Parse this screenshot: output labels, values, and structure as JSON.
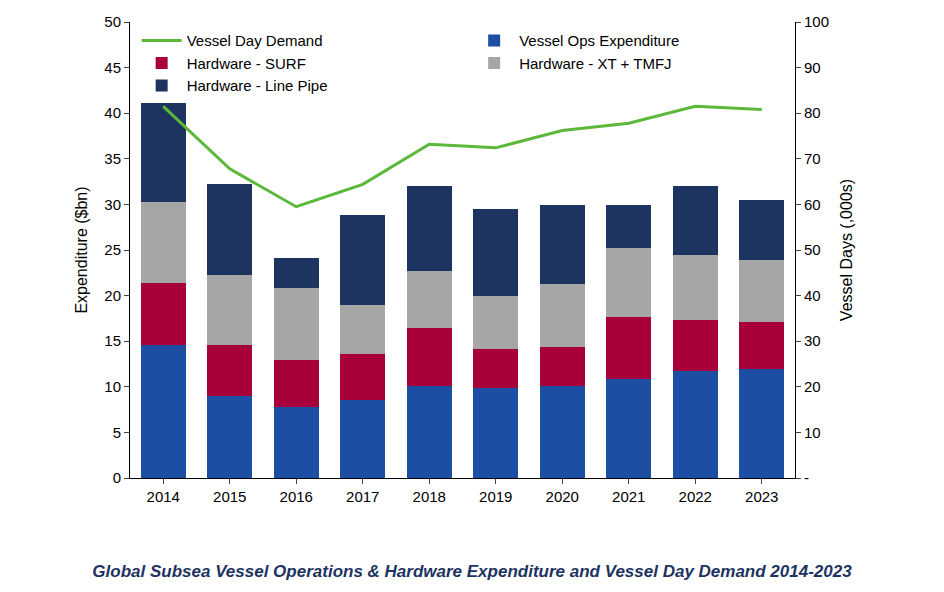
{
  "chart_data": {
    "type": "bar",
    "title": "Global Subsea Vessel Operations & Hardware Expenditure and Vessel Day Demand 2014-2023",
    "y_label": "Expenditure ($bn)",
    "y2_label": "Vessel Days (,000s)",
    "categories": [
      "2014",
      "2015",
      "2016",
      "2017",
      "2018",
      "2019",
      "2020",
      "2021",
      "2022",
      "2023"
    ],
    "stacked": true,
    "grid": false,
    "legend": "top left",
    "ylim": [
      0,
      50
    ],
    "yticks": [
      0,
      5,
      10,
      15,
      20,
      25,
      30,
      35,
      40,
      45,
      50
    ],
    "y2lim": [
      0,
      100
    ],
    "y2ticks": [
      {
        "value": 0,
        "label": "-"
      },
      10,
      20,
      30,
      40,
      50,
      60,
      70,
      80,
      90,
      100
    ],
    "series": [
      {
        "name": "Hardware - Line Pipe",
        "color": "#1d3461",
        "values": [
          10.8,
          9.9,
          3.3,
          9.8,
          9.3,
          9.5,
          8.6,
          4.7,
          7.5,
          6.6
        ]
      },
      {
        "name": "Hardware - XT + TMFJ",
        "color": "#a6a6a6",
        "values": [
          8.9,
          7.7,
          7.9,
          5.4,
          6.3,
          5.8,
          6.9,
          7.5,
          7.2,
          6.8
        ]
      },
      {
        "name": "Hardware - SURF",
        "color": "#a8003b",
        "values": [
          6.8,
          5.6,
          5.1,
          5.0,
          6.3,
          4.3,
          4.3,
          6.8,
          5.6,
          5.2
        ]
      },
      {
        "name": "Vessel Ops Expenditure",
        "color": "#1c4fa3",
        "values": [
          14.6,
          9.0,
          7.8,
          8.6,
          10.1,
          9.9,
          10.1,
          10.9,
          11.7,
          11.9
        ]
      },
      {
        "name": "Vessel Day Demand",
        "color": "#5cb83a",
        "type": "line",
        "axis": "y2",
        "values": [
          81.5,
          67.8,
          59.5,
          64.4,
          73.2,
          72.4,
          76.2,
          77.8,
          81.5,
          80.8
        ]
      }
    ]
  }
}
